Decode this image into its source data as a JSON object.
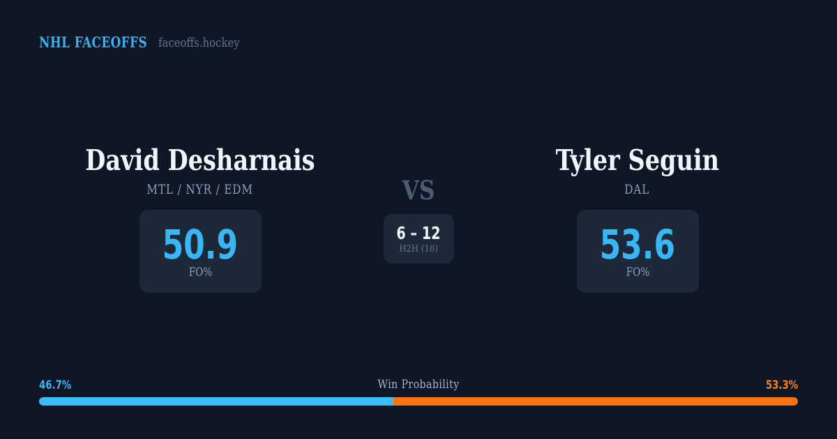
{
  "brand": {
    "title": "NHL FACEOFFS",
    "site": "faceoffs.hockey"
  },
  "players": {
    "left": {
      "name": "David Desharnais",
      "teams": "MTL / NYR / EDM",
      "fo_pct": "50.9",
      "stat_label": "FO%"
    },
    "right": {
      "name": "Tyler Seguin",
      "teams": "DAL",
      "fo_pct": "53.6",
      "stat_label": "FO%"
    }
  },
  "center": {
    "vs_label": "VS",
    "h2h_score": "6 – 12",
    "h2h_label": "H2H (18)"
  },
  "win_probability": {
    "title": "Win Probability",
    "left_pct_label": "46.7%",
    "right_pct_label": "53.3%",
    "left_value": 46.7,
    "right_value": 53.3
  },
  "colors": {
    "background": "#0f1626",
    "panel": "#1d2838",
    "accent_blue": "#38b6f5",
    "accent_orange": "#f97316",
    "text_primary": "#f1f5f9",
    "text_muted": "#8da0bd"
  },
  "chart_data": {
    "type": "bar",
    "title": "Win Probability",
    "categories": [
      "David Desharnais",
      "Tyler Seguin"
    ],
    "series": [
      {
        "name": "Win Probability %",
        "values": [
          46.7,
          53.3
        ]
      },
      {
        "name": "Faceoff %",
        "values": [
          50.9,
          53.6
        ]
      },
      {
        "name": "H2H wins (18 faceoffs)",
        "values": [
          6,
          12
        ]
      }
    ],
    "legend_position": "none",
    "xlim": [
      0,
      100
    ]
  }
}
